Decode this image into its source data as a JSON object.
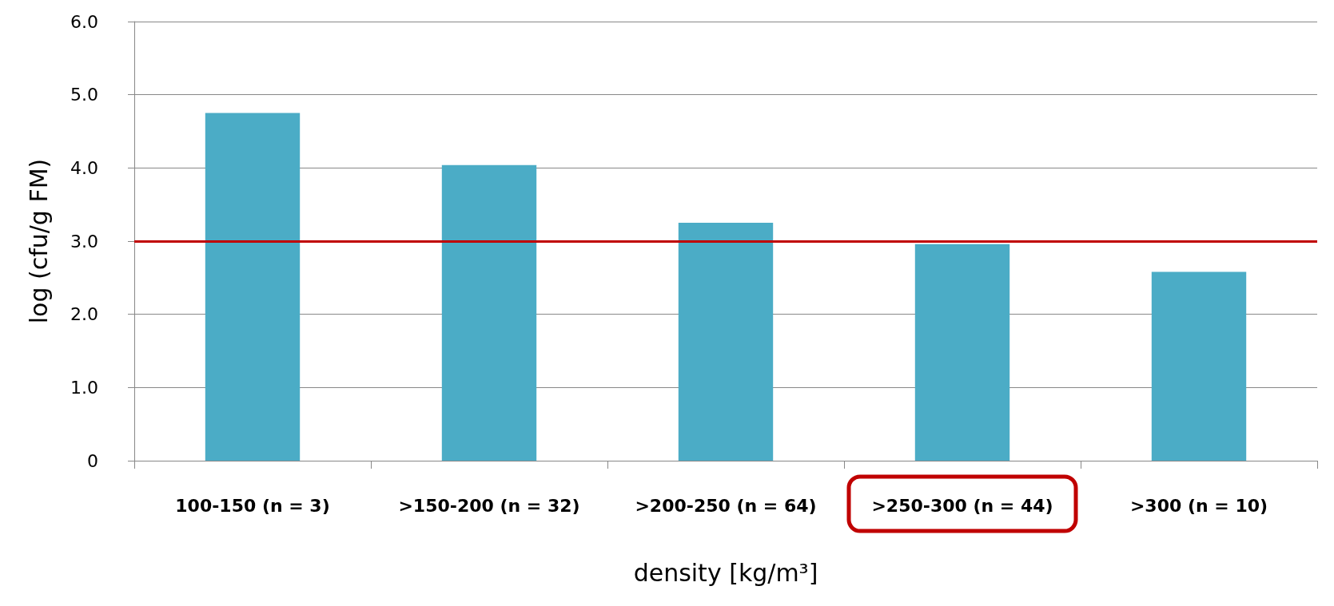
{
  "chart_data": {
    "type": "bar",
    "xlabel": "density [kg/m³]",
    "ylabel": "log (cfu/g FM)",
    "categories": [
      "100-150 (n = 3)",
      ">150-200 (n = 32)",
      ">200-250 (n = 64)",
      ">250-300 (n = 44)",
      ">300 (n = 10)"
    ],
    "values": [
      4.75,
      4.04,
      3.25,
      2.96,
      2.58
    ],
    "color": "#4bacc6",
    "ylim": [
      0,
      6
    ],
    "yticks": [
      0,
      {
        "value": 1,
        "label": "1.0"
      },
      {
        "value": 2,
        "label": "2.0"
      },
      {
        "value": 3,
        "label": "3.0"
      },
      {
        "value": 4,
        "label": "4.0"
      },
      {
        "value": 5,
        "label": "5.0"
      },
      {
        "value": 6,
        "label": "6.0"
      }
    ],
    "ref_lines": [
      {
        "axis": "y",
        "value": 3,
        "color": "#c00000"
      }
    ],
    "grid": "y"
  }
}
